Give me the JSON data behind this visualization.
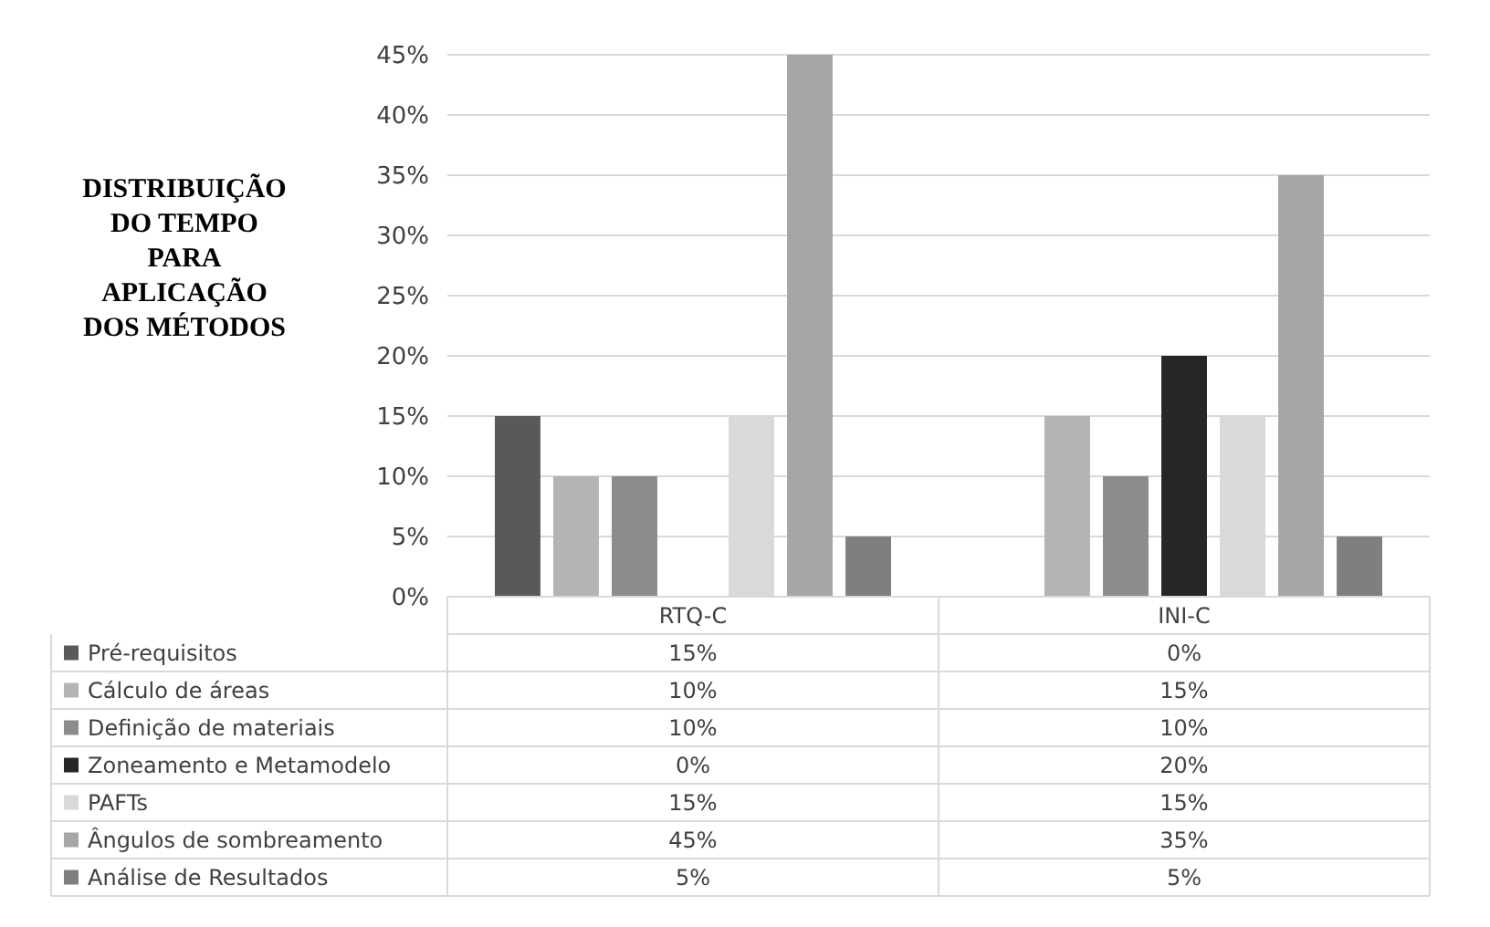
{
  "chart_data": {
    "type": "bar",
    "title": "DISTRIBUIÇÃO DO TEMPO PARA APLICAÇÃO DOS MÉTODOS",
    "categories": [
      "RTQ-C",
      "INI-C"
    ],
    "ylim": [
      0,
      45
    ],
    "yticks": [
      {
        "value": 0,
        "label": "0%"
      },
      {
        "value": 5,
        "label": "5%"
      },
      {
        "value": 10,
        "label": "10%"
      },
      {
        "value": 15,
        "label": "15%"
      },
      {
        "value": 20,
        "label": "20%"
      },
      {
        "value": 25,
        "label": "25%"
      },
      {
        "value": 30,
        "label": "30%"
      },
      {
        "value": 35,
        "label": "35%"
      },
      {
        "value": 40,
        "label": "40%"
      },
      {
        "value": 45,
        "label": "45%"
      }
    ],
    "grid": "y",
    "legend": "bottom",
    "series": [
      {
        "name": "Pré-requisitos",
        "color": "#595959",
        "values": [
          15,
          0
        ],
        "value_labels": [
          "15%",
          "0%"
        ]
      },
      {
        "name": "Cálculo de áreas",
        "color": "#b4b4b4",
        "values": [
          10,
          15
        ],
        "value_labels": [
          "10%",
          "15%"
        ]
      },
      {
        "name": "Definição de materiais",
        "color": "#8c8c8c",
        "values": [
          10,
          10
        ],
        "value_labels": [
          "10%",
          "10%"
        ]
      },
      {
        "name": "Zoneamento e Metamodelo",
        "color": "#262626",
        "values": [
          0,
          20
        ],
        "value_labels": [
          "0%",
          "20%"
        ]
      },
      {
        "name": "PAFTs",
        "color": "#d9d9d9",
        "values": [
          15,
          15
        ],
        "value_labels": [
          "15%",
          "15%"
        ]
      },
      {
        "name": "Ângulos de sombreamento",
        "color": "#a6a6a6",
        "values": [
          45,
          35
        ],
        "value_labels": [
          "45%",
          "35%"
        ]
      },
      {
        "name": "Análise de Resultados",
        "color": "#7f7f7f",
        "values": [
          5,
          5
        ],
        "value_labels": [
          "5%",
          "5%"
        ]
      }
    ]
  }
}
